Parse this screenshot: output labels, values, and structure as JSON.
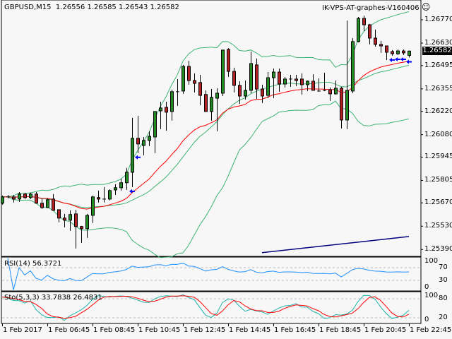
{
  "header": {
    "symbol": "GBPUSD,M15",
    "ohlc": "1.26556 1.26585 1.26543 1.26582",
    "expert": "IK-VPS-AT-graphes-V160406",
    "expert_icon": "smiley-icon"
  },
  "colors": {
    "bull": "#228b22",
    "bear": "#b22222",
    "bands": "#3cb371",
    "ma": "#ff0000",
    "long_ma": "#000080",
    "rsi": "#1e90ff",
    "sto_main": "#20b2aa",
    "sto_signal": "#ff0000",
    "arrows": "#0000ff"
  },
  "chart_data": {
    "type": "candlestick",
    "price_axis": {
      "ticks": [
        "1.26770",
        "1.26630",
        "1.26495",
        "1.26355",
        "1.26220",
        "1.26080",
        "1.25945",
        "1.25805",
        "1.25670",
        "1.25530",
        "1.25390"
      ],
      "last_price": "1.26582"
    },
    "time_axis": {
      "ticks": [
        "1 Feb 2017",
        "1 Feb 06:45",
        "1 Feb 08:45",
        "1 Feb 10:45",
        "1 Feb 12:45",
        "1 Feb 14:45",
        "1 Feb 16:45",
        "1 Feb 18:45",
        "1 Feb 20:45",
        "1 Feb 22:45"
      ]
    },
    "ohlc": [
      [
        1.25668,
        1.25714,
        1.25659,
        1.25706
      ],
      [
        1.25706,
        1.25718,
        1.25697,
        1.25706
      ],
      [
        1.25706,
        1.25718,
        1.25672,
        1.25693
      ],
      [
        1.25693,
        1.25735,
        1.25676,
        1.25723
      ],
      [
        1.25723,
        1.25731,
        1.25693,
        1.25702
      ],
      [
        1.25702,
        1.25731,
        1.25693,
        1.25723
      ],
      [
        1.25723,
        1.25735,
        1.25668,
        1.25668
      ],
      [
        1.25668,
        1.25697,
        1.25634,
        1.25642
      ],
      [
        1.25642,
        1.25697,
        1.25642,
        1.25689
      ],
      [
        1.25693,
        1.25723,
        1.25625,
        1.25625
      ],
      [
        1.25629,
        1.25629,
        1.25553,
        1.25579
      ],
      [
        1.25579,
        1.25604,
        1.25523,
        1.25566
      ],
      [
        1.25566,
        1.25625,
        1.25502,
        1.256
      ],
      [
        1.25604,
        1.25629,
        1.25396,
        1.25528
      ],
      [
        1.25528,
        1.25532,
        1.2543,
        1.25515
      ],
      [
        1.25515,
        1.25604,
        1.2546,
        1.25595
      ],
      [
        1.25595,
        1.25714,
        1.25549,
        1.25706
      ],
      [
        1.25702,
        1.25744,
        1.25672,
        1.25693
      ],
      [
        1.25693,
        1.25765,
        1.25672,
        1.25693
      ],
      [
        1.25693,
        1.25752,
        1.25685,
        1.25744
      ],
      [
        1.25748,
        1.25782,
        1.25718,
        1.25761
      ],
      [
        1.25761,
        1.25816,
        1.25744,
        1.25791
      ],
      [
        1.25791,
        1.2588,
        1.25748,
        1.25854
      ],
      [
        1.25854,
        1.26181,
        1.25765,
        1.26058
      ],
      [
        1.26058,
        1.26193,
        1.25969,
        1.26024
      ],
      [
        1.26015,
        1.26066,
        1.25956,
        1.26045
      ],
      [
        1.26045,
        1.261,
        1.26011,
        1.2607
      ],
      [
        1.26066,
        1.26219,
        1.25969,
        1.26219
      ],
      [
        1.26223,
        1.26278,
        1.26113,
        1.2624
      ],
      [
        1.26244,
        1.26278,
        1.26104,
        1.26215
      ],
      [
        1.26219,
        1.2635,
        1.26164,
        1.26338
      ],
      [
        1.26338,
        1.26414,
        1.26253,
        1.26338
      ],
      [
        1.26342,
        1.26499,
        1.26325,
        1.2649
      ],
      [
        1.2649,
        1.26524,
        1.2638,
        1.26405
      ],
      [
        1.26405,
        1.26448,
        1.26333,
        1.26388
      ],
      [
        1.26393,
        1.26439,
        1.26257,
        1.26316
      ],
      [
        1.26321,
        1.26346,
        1.26219,
        1.26219
      ],
      [
        1.26219,
        1.26354,
        1.26164,
        1.26304
      ],
      [
        1.26299,
        1.26359,
        1.261,
        1.26329
      ],
      [
        1.26329,
        1.26588,
        1.26312,
        1.26588
      ],
      [
        1.26592,
        1.266,
        1.26427,
        1.2646
      ],
      [
        1.2646,
        1.26482,
        1.26333,
        1.26376
      ],
      [
        1.26376,
        1.26401,
        1.26265,
        1.26312
      ],
      [
        1.26312,
        1.26405,
        1.26291,
        1.26346
      ],
      [
        1.26346,
        1.26579,
        1.26329,
        1.26507
      ],
      [
        1.26499,
        1.26537,
        1.26295,
        1.26354
      ],
      [
        1.26354,
        1.2638,
        1.2627,
        1.26312
      ],
      [
        1.26316,
        1.26456,
        1.26299,
        1.26422
      ],
      [
        1.26422,
        1.26477,
        1.26299,
        1.26456
      ],
      [
        1.26456,
        1.26477,
        1.26338,
        1.26384
      ],
      [
        1.26384,
        1.26427,
        1.26363,
        1.26414
      ],
      [
        1.26414,
        1.26439,
        1.26367,
        1.26414
      ],
      [
        1.26414,
        1.26439,
        1.26371,
        1.26405
      ],
      [
        1.26414,
        1.26448,
        1.26321,
        1.2638
      ],
      [
        1.2638,
        1.26405,
        1.26342,
        1.26401
      ],
      [
        1.26401,
        1.26443,
        1.26346,
        1.26346
      ],
      [
        1.26342,
        1.26418,
        1.26338,
        1.26342
      ],
      [
        1.26346,
        1.26452,
        1.26342,
        1.26346
      ],
      [
        1.2635,
        1.26363,
        1.26282,
        1.26325
      ],
      [
        1.26325,
        1.26405,
        1.26321,
        1.26359
      ],
      [
        1.26359,
        1.26367,
        1.26117,
        1.26168
      ],
      [
        1.26168,
        1.26766,
        1.26113,
        1.26346
      ],
      [
        1.26342,
        1.2666,
        1.26329,
        1.26639
      ],
      [
        1.26639,
        1.26787,
        1.26634,
        1.26778
      ],
      [
        1.26778,
        1.26795,
        1.26702,
        1.2674
      ],
      [
        1.2674,
        1.26745,
        1.26622,
        1.2666
      ],
      [
        1.2666,
        1.26711,
        1.26609,
        1.26622
      ],
      [
        1.26622,
        1.26643,
        1.26571,
        1.26613
      ],
      [
        1.26613,
        1.26613,
        1.26528,
        1.26575
      ],
      [
        1.26579,
        1.26588,
        1.26554,
        1.26566
      ],
      [
        1.26566,
        1.26592,
        1.26558,
        1.26583
      ],
      [
        1.26583,
        1.26592,
        1.26558,
        1.26571
      ],
      [
        1.26556,
        1.26585,
        1.26543,
        1.26582
      ]
    ],
    "long_ma": {
      "from_bar": 46,
      "values": [
        1.25371,
        1.25468
      ]
    },
    "arrow_bars": [
      23,
      24,
      69,
      70,
      71,
      72
    ],
    "rsi": {
      "label": "RSI(14) 56.3721",
      "levels": [
        "100",
        "70",
        "30",
        "0"
      ],
      "dashed": [
        70,
        30
      ]
    },
    "stochastic": {
      "label": "Sto(5,3,3) 33.7838 26.4831",
      "levels": [
        "100",
        "80",
        "20",
        "0"
      ],
      "dashed": [
        80,
        20
      ]
    }
  }
}
